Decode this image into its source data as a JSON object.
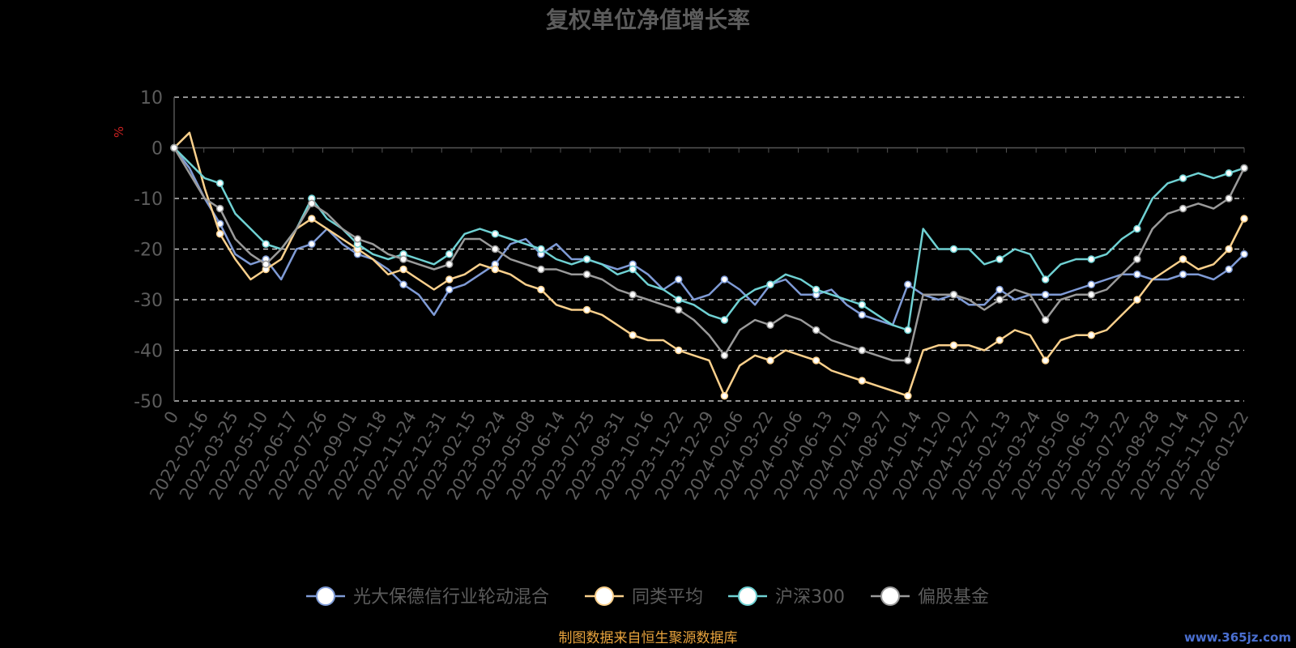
{
  "chart_data": {
    "type": "line",
    "title": "复权单位净值增长率",
    "ylabel": "%",
    "ylim": [
      -50,
      10
    ],
    "yticks": [
      10,
      0,
      -10,
      -20,
      -30,
      -40,
      -50
    ],
    "x_tick_labels": [
      "0",
      "2022-02-16",
      "2022-03-25",
      "2022-05-10",
      "2022-06-17",
      "2022-07-26",
      "2022-09-01",
      "2022-10-18",
      "2022-11-24",
      "2022-12-31",
      "2023-02-15",
      "2023-03-24",
      "2023-05-08",
      "2023-06-14",
      "2023-07-25",
      "2023-08-31",
      "2023-10-16",
      "2023-11-22",
      "2023-12-29",
      "2024-02-06",
      "2024-03-22",
      "2024-05-06",
      "2024-06-13",
      "2024-07-19",
      "2024-08-27",
      "2024-10-14",
      "2024-11-20",
      "2024-12-27",
      "2025-02-13",
      "2025-03-24",
      "2025-05-06",
      "2025-06-13",
      "2025-07-22",
      "2025-08-28",
      "2025-10-14",
      "2025-11-20",
      "2026-01-22"
    ],
    "grid": "horizontal-dashed",
    "legend_position": "bottom",
    "series": [
      {
        "name": "光大保德信行业轮动混合",
        "color": "#7f9bd6",
        "values": [
          0,
          -4,
          -10,
          -15,
          -21,
          -23,
          -22,
          -26,
          -20,
          -19,
          -16,
          -19,
          -21,
          -22,
          -24,
          -27,
          -29,
          -33,
          -28,
          -27,
          -25,
          -23,
          -19,
          -18,
          -21,
          -19,
          -22,
          -22,
          -23,
          -24,
          -23,
          -25,
          -28,
          -26,
          -30,
          -29,
          -26,
          -28,
          -31,
          -27,
          -26,
          -29,
          -29,
          -28,
          -31,
          -33,
          -34,
          -35,
          -27,
          -29,
          -30,
          -29,
          -31,
          -31,
          -28,
          -30,
          -29,
          -29,
          -29,
          -28,
          -27,
          -26,
          -25,
          -25,
          -26,
          -26,
          -25,
          -25,
          -26,
          -24,
          -21
        ]
      },
      {
        "name": "同类平均",
        "color": "#fad08c",
        "values": [
          0,
          3,
          -8,
          -17,
          -22,
          -26,
          -24,
          -22,
          -16,
          -14,
          -16,
          -18,
          -20,
          -22,
          -25,
          -24,
          -26,
          -28,
          -26,
          -25,
          -23,
          -24,
          -25,
          -27,
          -28,
          -31,
          -32,
          -32,
          -33,
          -35,
          -37,
          -38,
          -38,
          -40,
          -41,
          -42,
          -49,
          -43,
          -41,
          -42,
          -40,
          -41,
          -42,
          -44,
          -45,
          -46,
          -47,
          -48,
          -49,
          -40,
          -39,
          -39,
          -39,
          -40,
          -38,
          -36,
          -37,
          -42,
          -38,
          -37,
          -37,
          -36,
          -33,
          -30,
          -26,
          -24,
          -22,
          -24,
          -23,
          -20,
          -14
        ]
      },
      {
        "name": "沪深300",
        "color": "#6fd1d3",
        "values": [
          0,
          -3,
          -6,
          -7,
          -13,
          -16,
          -19,
          -20,
          -16,
          -10,
          -14,
          -16,
          -19,
          -21,
          -22,
          -21,
          -22,
          -23,
          -21,
          -17,
          -16,
          -17,
          -18,
          -19,
          -20,
          -22,
          -23,
          -22,
          -23,
          -25,
          -24,
          -27,
          -28,
          -30,
          -31,
          -33,
          -34,
          -30,
          -28,
          -27,
          -25,
          -26,
          -28,
          -29,
          -30,
          -31,
          -33,
          -35,
          -36,
          -16,
          -20,
          -20,
          -20,
          -23,
          -22,
          -20,
          -21,
          -26,
          -23,
          -22,
          -22,
          -21,
          -18,
          -16,
          -10,
          -7,
          -6,
          -5,
          -6,
          -5,
          -4
        ]
      },
      {
        "name": "偏股基金",
        "color": "#9a9a9a",
        "values": [
          0,
          -5,
          -10,
          -12,
          -18,
          -21,
          -23,
          -20,
          -16,
          -11,
          -13,
          -16,
          -18,
          -19,
          -21,
          -22,
          -23,
          -24,
          -23,
          -18,
          -18,
          -20,
          -22,
          -23,
          -24,
          -24,
          -25,
          -25,
          -26,
          -28,
          -29,
          -30,
          -31,
          -32,
          -34,
          -37,
          -41,
          -36,
          -34,
          -35,
          -33,
          -34,
          -36,
          -38,
          -39,
          -40,
          -41,
          -42,
          -42,
          -29,
          -29,
          -29,
          -30,
          -32,
          -30,
          -28,
          -29,
          -34,
          -30,
          -29,
          -29,
          -28,
          -25,
          -22,
          -16,
          -13,
          -12,
          -11,
          -12,
          -10,
          -4
        ]
      }
    ]
  },
  "footer": {
    "source": "制图数据来自恒生聚源数据库",
    "watermark": "www.365jz.com"
  }
}
